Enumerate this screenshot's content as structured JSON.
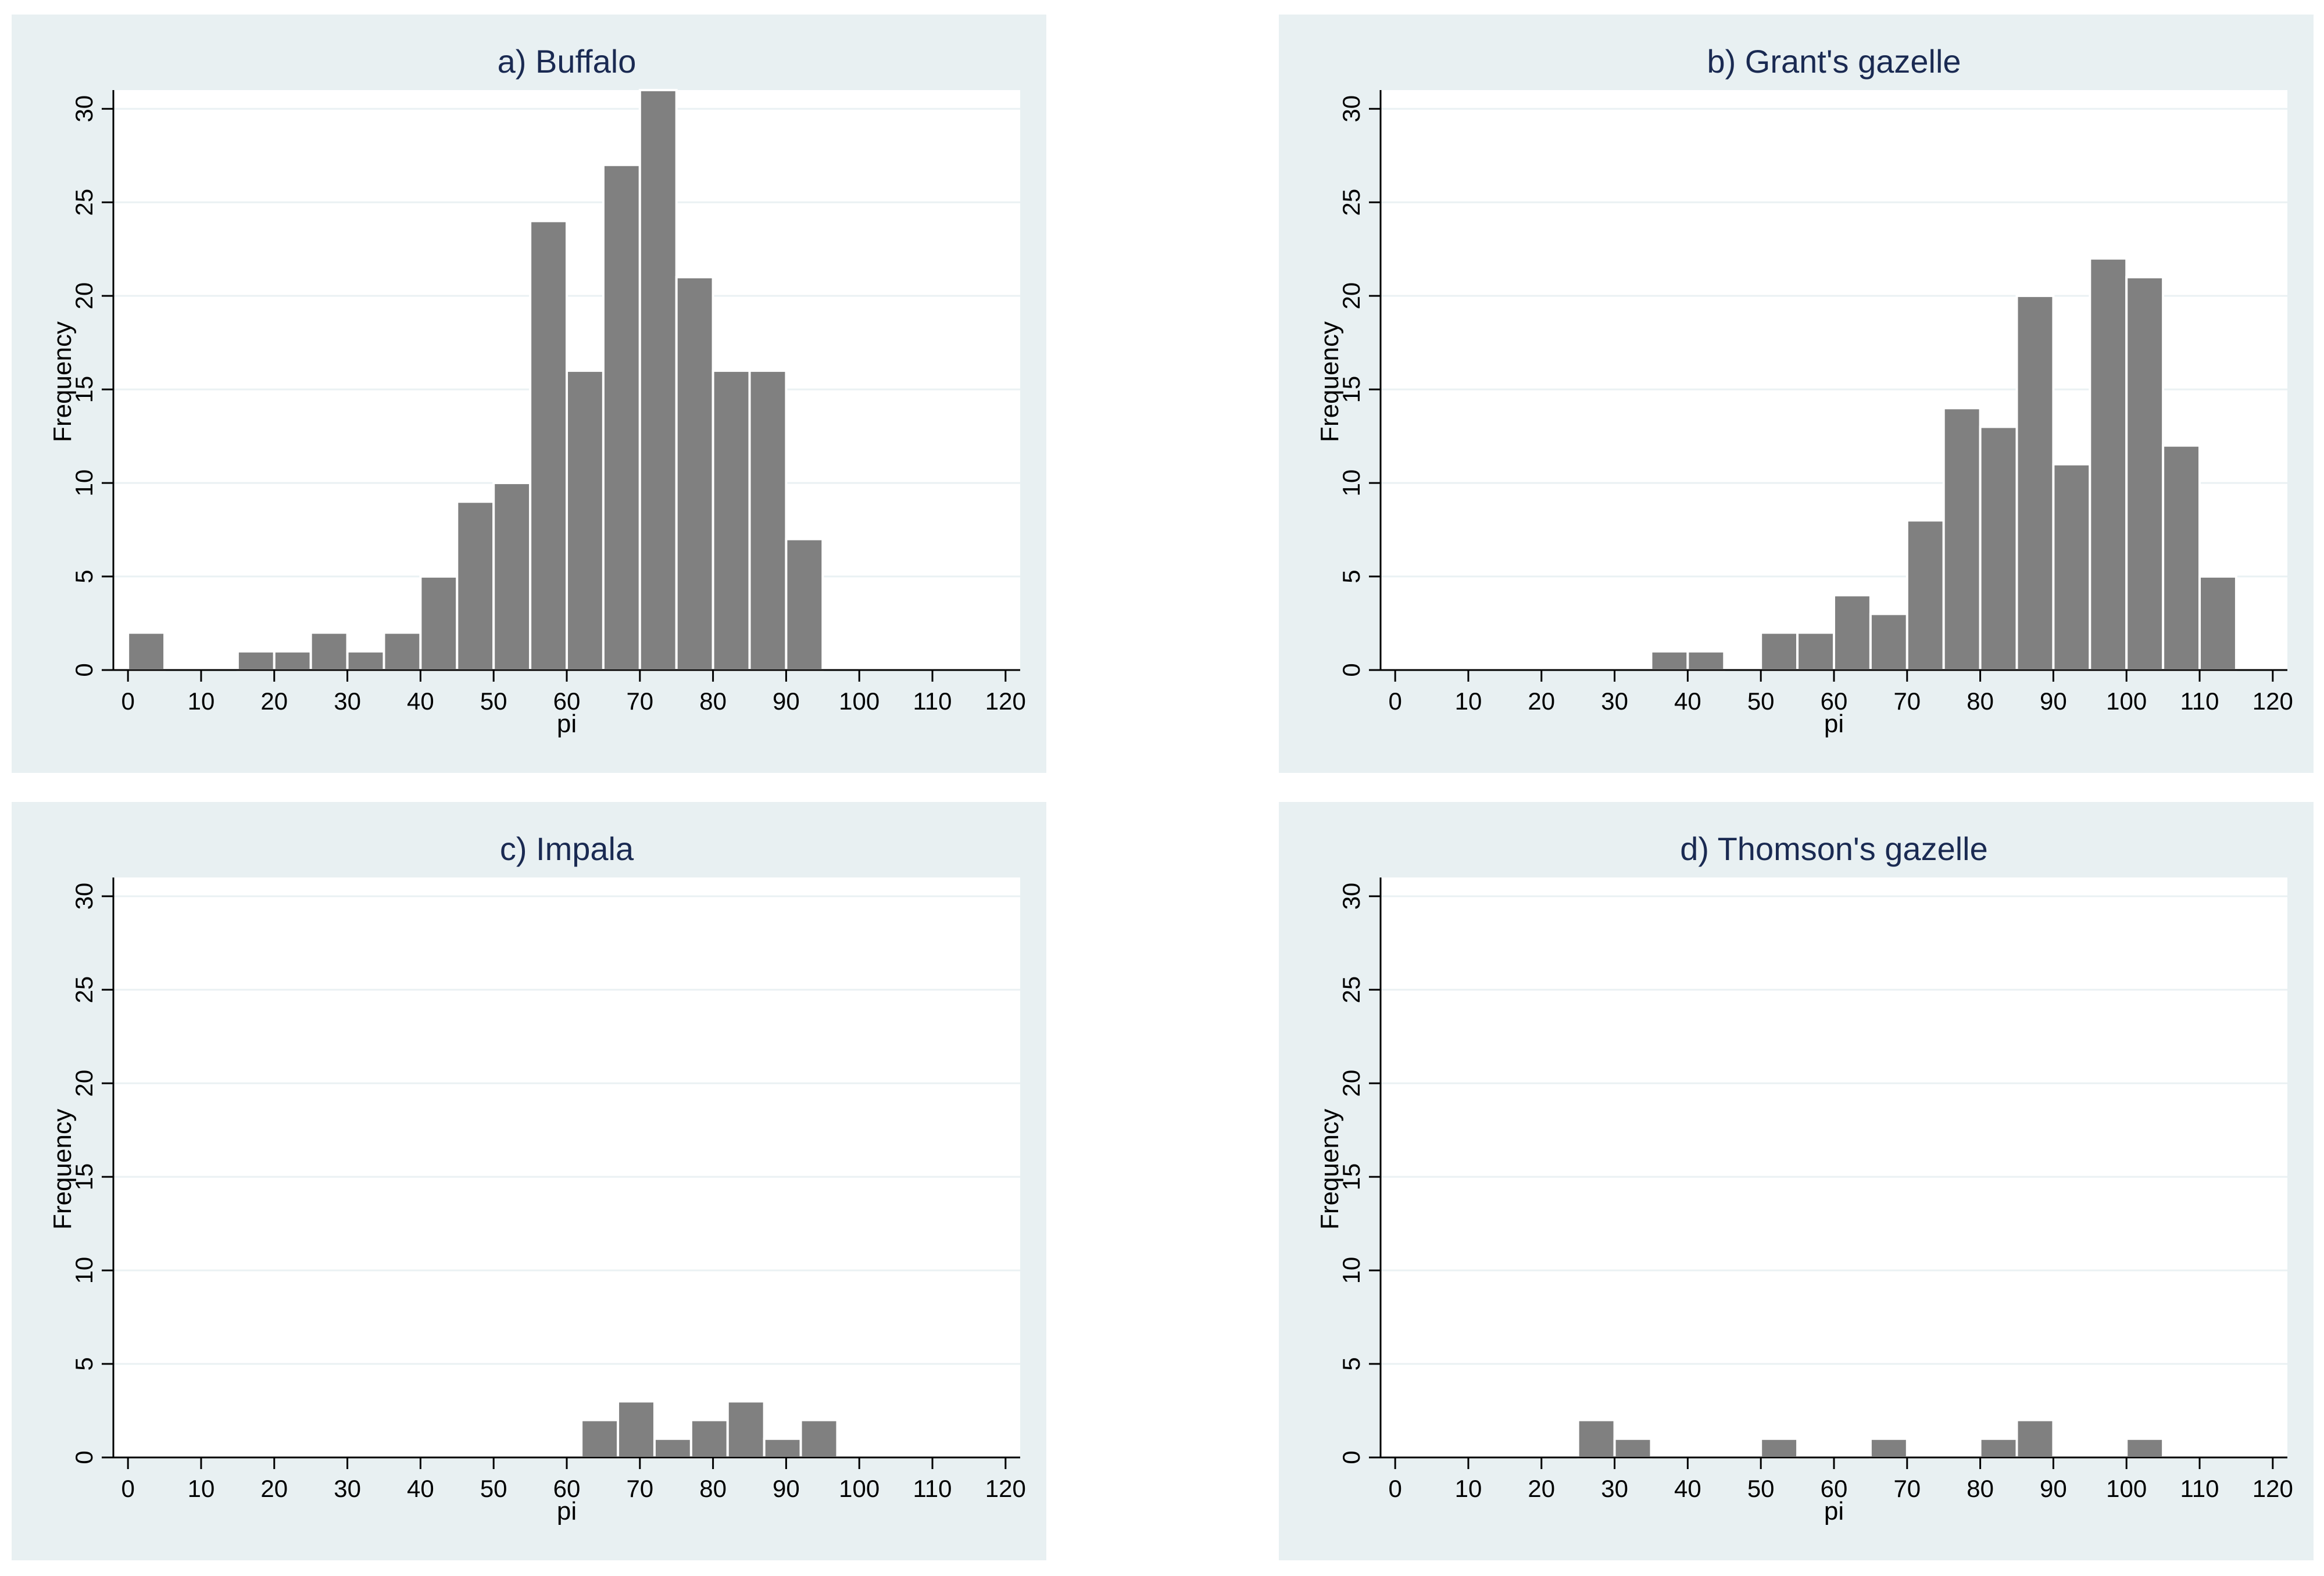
{
  "chart_data": [
    {
      "type": "bar",
      "title": "a) Buffalo",
      "xlabel": "pi",
      "ylabel": "Frequency",
      "xlim": [
        -2,
        122
      ],
      "ylim": [
        0,
        31
      ],
      "xticks": [
        0,
        10,
        20,
        30,
        40,
        50,
        60,
        70,
        80,
        90,
        100,
        110,
        120
      ],
      "yticks": [
        0,
        5,
        10,
        15,
        20,
        25,
        30
      ],
      "bin_width": 5,
      "bin_starts": [
        0,
        15,
        20,
        25,
        30,
        35,
        40,
        45,
        50,
        55,
        60,
        65,
        70,
        75,
        80,
        85,
        90
      ],
      "values": [
        2,
        1,
        1,
        2,
        1,
        2,
        5,
        9,
        10,
        24,
        16,
        27,
        31,
        21,
        16,
        16,
        7
      ]
    },
    {
      "type": "bar",
      "title": "b) Grant's gazelle",
      "xlabel": "pi",
      "ylabel": "Frequency",
      "xlim": [
        -2,
        122
      ],
      "ylim": [
        0,
        31
      ],
      "xticks": [
        0,
        10,
        20,
        30,
        40,
        50,
        60,
        70,
        80,
        90,
        100,
        110,
        120
      ],
      "yticks": [
        0,
        5,
        10,
        15,
        20,
        25,
        30
      ],
      "bin_width": 5,
      "bin_starts": [
        35,
        40,
        50,
        55,
        60,
        65,
        70,
        75,
        80,
        85,
        90,
        95,
        100,
        105,
        110
      ],
      "values": [
        1,
        1,
        2,
        2,
        4,
        3,
        8,
        14,
        13,
        20,
        11,
        22,
        21,
        12,
        5
      ]
    },
    {
      "type": "bar",
      "title": "c) Impala",
      "xlabel": "pi",
      "ylabel": "Frequency",
      "xlim": [
        -2,
        122
      ],
      "ylim": [
        0,
        31
      ],
      "xticks": [
        0,
        10,
        20,
        30,
        40,
        50,
        60,
        70,
        80,
        90,
        100,
        110,
        120
      ],
      "yticks": [
        0,
        5,
        10,
        15,
        20,
        25,
        30
      ],
      "bin_width": 5,
      "bin_starts": [
        62,
        67,
        72,
        77,
        82,
        87,
        92
      ],
      "values": [
        2,
        3,
        1,
        2,
        3,
        1,
        2
      ]
    },
    {
      "type": "bar",
      "title": "d) Thomson's gazelle",
      "xlabel": "pi",
      "ylabel": "Frequency",
      "xlim": [
        -2,
        122
      ],
      "ylim": [
        0,
        31
      ],
      "xticks": [
        0,
        10,
        20,
        30,
        40,
        50,
        60,
        70,
        80,
        90,
        100,
        110,
        120
      ],
      "yticks": [
        0,
        5,
        10,
        15,
        20,
        25,
        30
      ],
      "bin_width": 5,
      "bin_starts": [
        25,
        30,
        50,
        65,
        80,
        85,
        100
      ],
      "values": [
        2,
        1,
        1,
        1,
        1,
        2,
        1
      ]
    }
  ],
  "colors": {
    "panel_bg": "#e8f0f2",
    "plot_bg": "#ffffff",
    "bar": "#808080",
    "grid": "#eaf1f3",
    "axis": "#000000",
    "title": "#1a2a52"
  }
}
